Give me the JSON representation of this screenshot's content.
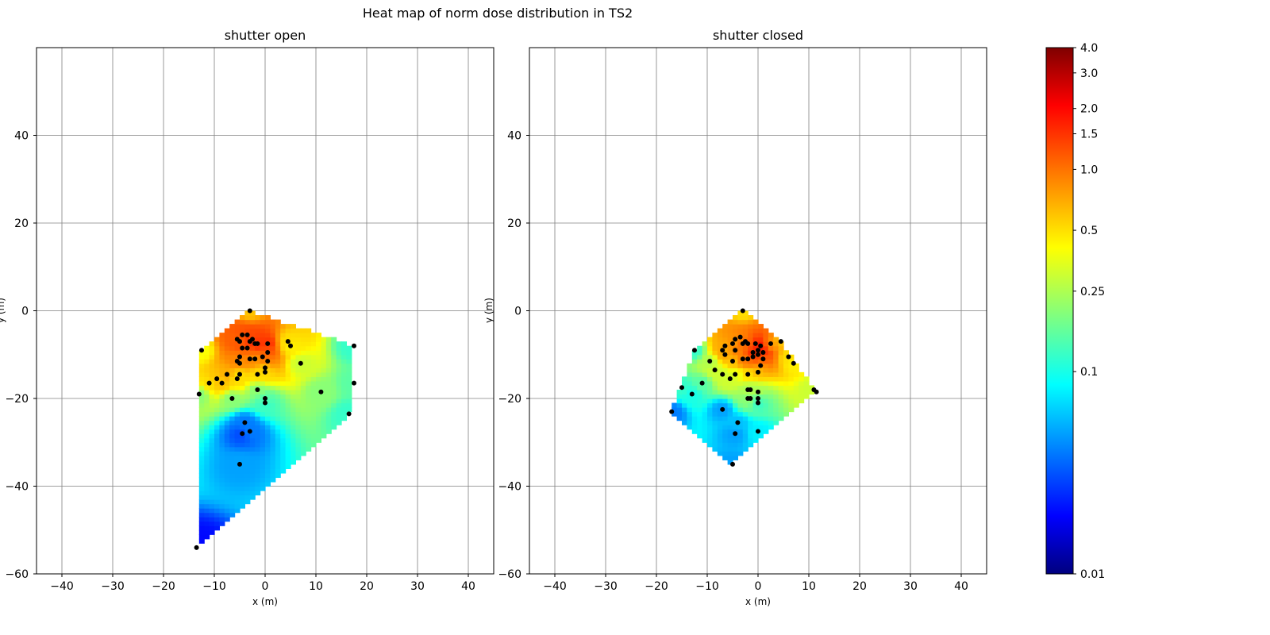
{
  "figure_title": "Heat map of norm dose distribution in TS2",
  "chart_data": [
    {
      "type": "heatmap",
      "title": "shutter open",
      "xlabel": "x (m)",
      "ylabel": "y (m)",
      "xlim": [
        -45,
        45
      ],
      "ylim": [
        -60,
        60
      ],
      "xticks": [
        -40,
        -30,
        -20,
        -10,
        0,
        10,
        20,
        30,
        40
      ],
      "yticks": [
        -60,
        -40,
        -20,
        0,
        20,
        40
      ],
      "grid": true,
      "points": [
        {
          "x": -3.0,
          "y": 0.0,
          "v": 0.6
        },
        {
          "x": -4.5,
          "y": -5.5,
          "v": 1.2
        },
        {
          "x": -3.5,
          "y": -5.5,
          "v": 1.3
        },
        {
          "x": -2.5,
          "y": -6.5,
          "v": 1.3
        },
        {
          "x": -3.0,
          "y": -7.0,
          "v": 1.5
        },
        {
          "x": -2.0,
          "y": -7.5,
          "v": 1.6
        },
        {
          "x": -1.5,
          "y": -7.5,
          "v": 1.5
        },
        {
          "x": -5.5,
          "y": -6.5,
          "v": 1.1
        },
        {
          "x": -5.0,
          "y": -7.0,
          "v": 1.2
        },
        {
          "x": -4.5,
          "y": -8.5,
          "v": 1.2
        },
        {
          "x": -3.5,
          "y": -8.5,
          "v": 1.1
        },
        {
          "x": -5.0,
          "y": -10.5,
          "v": 0.9
        },
        {
          "x": -5.5,
          "y": -11.5,
          "v": 0.9
        },
        {
          "x": -5.0,
          "y": -12.0,
          "v": 0.8
        },
        {
          "x": -3.0,
          "y": -11.0,
          "v": 0.9
        },
        {
          "x": -2.0,
          "y": -11.0,
          "v": 0.8
        },
        {
          "x": -0.5,
          "y": -10.5,
          "v": 1.0
        },
        {
          "x": 0.5,
          "y": -7.5,
          "v": 1.5
        },
        {
          "x": 0.5,
          "y": -9.5,
          "v": 1.2
        },
        {
          "x": 0.5,
          "y": -11.5,
          "v": 0.9
        },
        {
          "x": 0.0,
          "y": -13.0,
          "v": 0.6
        },
        {
          "x": 0.0,
          "y": -14.0,
          "v": 0.5
        },
        {
          "x": -1.5,
          "y": -14.5,
          "v": 0.5
        },
        {
          "x": 4.5,
          "y": -7.0,
          "v": 0.5
        },
        {
          "x": 5.0,
          "y": -8.0,
          "v": 0.45
        },
        {
          "x": 7.0,
          "y": -12.0,
          "v": 0.3
        },
        {
          "x": 17.5,
          "y": -8.0,
          "v": 0.12
        },
        {
          "x": 17.5,
          "y": -16.5,
          "v": 0.15
        },
        {
          "x": 11.0,
          "y": -18.5,
          "v": 0.2
        },
        {
          "x": 16.5,
          "y": -23.5,
          "v": 0.12
        },
        {
          "x": -12.5,
          "y": -9.0,
          "v": 0.4
        },
        {
          "x": -11.0,
          "y": -16.5,
          "v": 0.5
        },
        {
          "x": -9.5,
          "y": -15.5,
          "v": 0.6
        },
        {
          "x": -8.5,
          "y": -16.5,
          "v": 0.6
        },
        {
          "x": -7.5,
          "y": -14.5,
          "v": 0.7
        },
        {
          "x": -5.5,
          "y": -15.5,
          "v": 0.5
        },
        {
          "x": -5.0,
          "y": -14.5,
          "v": 0.5
        },
        {
          "x": -13.0,
          "y": -19.0,
          "v": 0.2
        },
        {
          "x": -6.5,
          "y": -20.0,
          "v": 0.2
        },
        {
          "x": -1.5,
          "y": -18.0,
          "v": 0.2
        },
        {
          "x": 0.0,
          "y": -20.0,
          "v": 0.15
        },
        {
          "x": 0.0,
          "y": -21.0,
          "v": 0.12
        },
        {
          "x": -4.0,
          "y": -25.5,
          "v": 0.04
        },
        {
          "x": -4.5,
          "y": -28.0,
          "v": 0.03
        },
        {
          "x": -3.0,
          "y": -27.5,
          "v": 0.04
        },
        {
          "x": -5.0,
          "y": -35.0,
          "v": 0.05
        },
        {
          "x": -13.5,
          "y": -54.0,
          "v": 0.02
        }
      ]
    },
    {
      "type": "heatmap",
      "title": "shutter closed",
      "xlabel": "x (m)",
      "ylabel": "y (m)",
      "xlim": [
        -45,
        45
      ],
      "ylim": [
        -60,
        60
      ],
      "xticks": [
        -40,
        -30,
        -20,
        -10,
        0,
        10,
        20,
        30,
        40
      ],
      "yticks": [
        -60,
        -40,
        -20,
        0,
        20,
        40
      ],
      "grid": true,
      "points": [
        {
          "x": -3.0,
          "y": 0.0,
          "v": 0.5
        },
        {
          "x": -3.5,
          "y": -6.0,
          "v": 0.9
        },
        {
          "x": -4.5,
          "y": -6.5,
          "v": 0.8
        },
        {
          "x": -2.5,
          "y": -7.0,
          "v": 1.0
        },
        {
          "x": -3.0,
          "y": -7.5,
          "v": 1.0
        },
        {
          "x": -2.0,
          "y": -7.5,
          "v": 1.1
        },
        {
          "x": -5.0,
          "y": -7.5,
          "v": 0.8
        },
        {
          "x": -6.5,
          "y": -8.0,
          "v": 0.7
        },
        {
          "x": -7.0,
          "y": -9.0,
          "v": 0.7
        },
        {
          "x": -4.5,
          "y": -9.0,
          "v": 0.9
        },
        {
          "x": -6.5,
          "y": -10.0,
          "v": 0.7
        },
        {
          "x": -0.5,
          "y": -7.5,
          "v": 1.6
        },
        {
          "x": 0.5,
          "y": -8.0,
          "v": 1.8
        },
        {
          "x": 0.0,
          "y": -9.0,
          "v": 1.7
        },
        {
          "x": -1.0,
          "y": -9.5,
          "v": 1.6
        },
        {
          "x": 1.0,
          "y": -9.5,
          "v": 1.5
        },
        {
          "x": 0.0,
          "y": -10.0,
          "v": 1.4
        },
        {
          "x": -1.0,
          "y": -10.5,
          "v": 1.3
        },
        {
          "x": 1.0,
          "y": -11.0,
          "v": 1.1
        },
        {
          "x": -2.0,
          "y": -11.0,
          "v": 1.0
        },
        {
          "x": -3.0,
          "y": -11.0,
          "v": 0.9
        },
        {
          "x": -5.0,
          "y": -11.5,
          "v": 0.6
        },
        {
          "x": 0.5,
          "y": -12.5,
          "v": 0.8
        },
        {
          "x": 0.0,
          "y": -14.0,
          "v": 0.6
        },
        {
          "x": -2.0,
          "y": -14.5,
          "v": 0.5
        },
        {
          "x": 2.5,
          "y": -7.5,
          "v": 0.8
        },
        {
          "x": 4.5,
          "y": -7.0,
          "v": 0.6
        },
        {
          "x": 6.0,
          "y": -10.5,
          "v": 0.5
        },
        {
          "x": 7.0,
          "y": -12.0,
          "v": 0.45
        },
        {
          "x": 11.0,
          "y": -18.0,
          "v": 0.3
        },
        {
          "x": 11.5,
          "y": -18.5,
          "v": 0.3
        },
        {
          "x": -12.5,
          "y": -9.0,
          "v": 0.12
        },
        {
          "x": -9.5,
          "y": -11.5,
          "v": 0.25
        },
        {
          "x": -8.5,
          "y": -13.5,
          "v": 0.3
        },
        {
          "x": -7.0,
          "y": -14.5,
          "v": 0.3
        },
        {
          "x": -5.5,
          "y": -15.5,
          "v": 0.3
        },
        {
          "x": -4.5,
          "y": -14.5,
          "v": 0.35
        },
        {
          "x": -11.0,
          "y": -16.5,
          "v": 0.15
        },
        {
          "x": -15.0,
          "y": -17.5,
          "v": 0.12
        },
        {
          "x": -13.0,
          "y": -19.0,
          "v": 0.1
        },
        {
          "x": -2.0,
          "y": -18.0,
          "v": 0.25
        },
        {
          "x": -1.5,
          "y": -18.0,
          "v": 0.25
        },
        {
          "x": 0.0,
          "y": -18.5,
          "v": 0.25
        },
        {
          "x": -2.0,
          "y": -20.0,
          "v": 0.2
        },
        {
          "x": 0.0,
          "y": -20.0,
          "v": 0.15
        },
        {
          "x": -1.5,
          "y": -20.0,
          "v": 0.2
        },
        {
          "x": -7.0,
          "y": -22.5,
          "v": 0.05
        },
        {
          "x": -4.0,
          "y": -25.5,
          "v": 0.06
        },
        {
          "x": -4.5,
          "y": -28.0,
          "v": 0.05
        },
        {
          "x": 0.0,
          "y": -27.5,
          "v": 0.08
        },
        {
          "x": 0.0,
          "y": -21.0,
          "v": 0.12
        },
        {
          "x": -17.0,
          "y": -23.0,
          "v": 0.04
        },
        {
          "x": -5.0,
          "y": -35.0,
          "v": 0.05
        }
      ]
    }
  ],
  "colorbar": {
    "colormap": "jet",
    "scale": "log",
    "range": [
      0.01,
      4.0
    ],
    "ticks": [
      {
        "value": 4.0,
        "label": "4.0"
      },
      {
        "value": 3.0,
        "label": "3.0"
      },
      {
        "value": 2.0,
        "label": "2.0"
      },
      {
        "value": 1.5,
        "label": "1.5"
      },
      {
        "value": 1.0,
        "label": "1.0"
      },
      {
        "value": 0.5,
        "label": "0.5"
      },
      {
        "value": 0.25,
        "label": "0.25"
      },
      {
        "value": 0.1,
        "label": "0.1"
      },
      {
        "value": 0.01,
        "label": "0.01"
      }
    ]
  },
  "colors": {
    "marker": "#000000",
    "grid": "#808080"
  }
}
